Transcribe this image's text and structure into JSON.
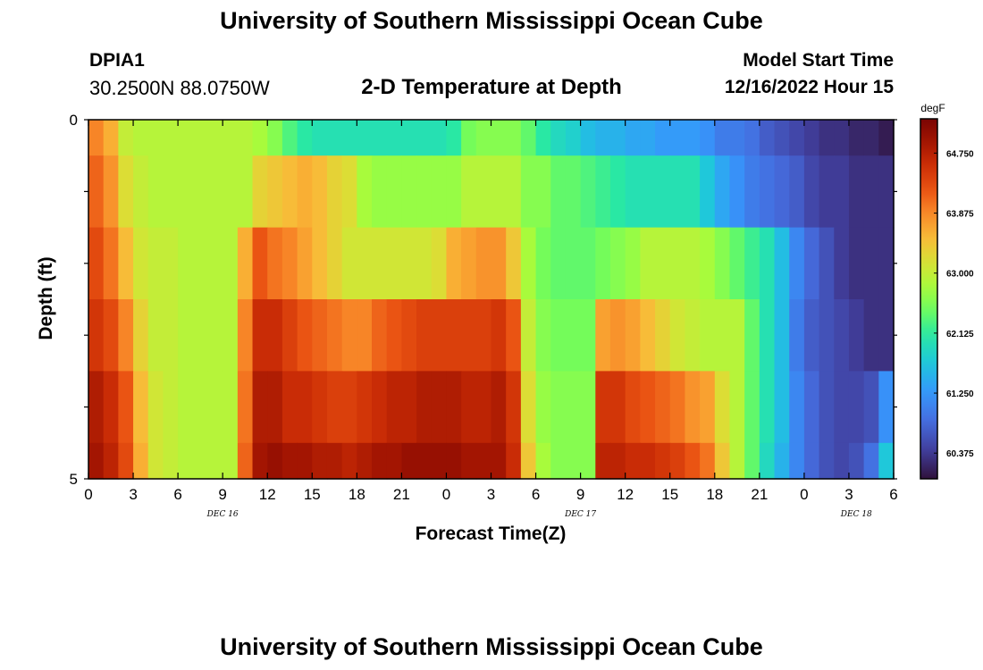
{
  "page": {
    "title": "University of Southern Mississippi Ocean Cube",
    "title_repeat": "University of Southern Mississippi Ocean Cube",
    "station_id": "DPIA1",
    "station_coords": "30.2500N  88.0750W",
    "run_label": "Model Start Time",
    "run_time": "12/16/2022 Hour 15"
  },
  "chart_data": {
    "type": "heatmap",
    "title": "2-D Temperature at Depth",
    "xlabel": "Forecast Time(Z)",
    "ylabel": "Depth (ft)",
    "x_tick_labels": [
      "0",
      "3",
      "6",
      "9",
      "12",
      "15",
      "18",
      "21",
      "0",
      "3",
      "6",
      "9",
      "12",
      "15",
      "18",
      "21",
      "0",
      "3",
      "6"
    ],
    "date_labels": [
      "DEC 16",
      "DEC 17",
      "DEC 18"
    ],
    "y_tick_labels": [
      "0",
      "5"
    ],
    "ylim": [
      0,
      5
    ],
    "x_hours": [
      0,
      54
    ],
    "colorbar": {
      "unit": "degF",
      "tick_labels": [
        "64.750",
        "63.875",
        "63.000",
        "62.125",
        "61.250",
        "60.375"
      ],
      "min": 60.0,
      "max": 65.25
    },
    "depth_bands": [
      {
        "depth_from": 0.0,
        "depth_to": 0.5,
        "temps": [
          63.9,
          63.6,
          63.0,
          62.9,
          62.9,
          62.9,
          62.9,
          62.9,
          62.9,
          62.9,
          62.9,
          62.8,
          62.6,
          62.3,
          62.1,
          62.0,
          62.0,
          62.0,
          62.0,
          62.0,
          62.0,
          62.0,
          62.0,
          62.0,
          62.1,
          62.5,
          62.6,
          62.6,
          62.6,
          62.4,
          62.1,
          61.9,
          61.8,
          61.6,
          61.5,
          61.5,
          61.4,
          61.4,
          61.3,
          61.3,
          61.3,
          61.2,
          61.0,
          61.0,
          60.9,
          60.7,
          60.6,
          60.5,
          60.4,
          60.3,
          60.3,
          60.2,
          60.2,
          60.1
        ]
      },
      {
        "depth_from": 0.5,
        "depth_to": 1.5,
        "temps": [
          64.1,
          63.8,
          63.2,
          63.0,
          62.9,
          62.9,
          62.9,
          62.9,
          62.9,
          62.9,
          62.9,
          63.3,
          63.4,
          63.5,
          63.6,
          63.5,
          63.3,
          63.2,
          62.8,
          62.7,
          62.7,
          62.7,
          62.7,
          62.7,
          62.7,
          62.9,
          62.9,
          62.9,
          62.9,
          62.6,
          62.6,
          62.4,
          62.4,
          62.3,
          62.2,
          62.1,
          62.0,
          62.0,
          62.0,
          62.0,
          62.0,
          61.7,
          61.4,
          61.2,
          61.0,
          60.9,
          60.8,
          60.7,
          60.5,
          60.4,
          60.4,
          60.3,
          60.3,
          60.3
        ]
      },
      {
        "depth_from": 1.5,
        "depth_to": 2.5,
        "temps": [
          64.3,
          64.0,
          63.5,
          63.1,
          63.0,
          63.0,
          62.9,
          62.9,
          62.9,
          62.9,
          63.6,
          64.2,
          64.0,
          63.9,
          63.7,
          63.5,
          63.3,
          63.1,
          63.1,
          63.1,
          63.1,
          63.1,
          63.1,
          63.2,
          63.6,
          63.7,
          63.8,
          63.8,
          63.4,
          62.8,
          62.5,
          62.4,
          62.4,
          62.4,
          62.5,
          62.6,
          62.7,
          62.9,
          62.9,
          62.9,
          62.9,
          62.8,
          62.6,
          62.4,
          62.2,
          62.0,
          61.6,
          61.1,
          60.8,
          60.6,
          60.4,
          60.3,
          60.3,
          60.3
        ]
      },
      {
        "depth_from": 2.5,
        "depth_to": 3.5,
        "temps": [
          64.5,
          64.3,
          63.9,
          63.3,
          63.0,
          63.0,
          62.9,
          62.9,
          62.9,
          62.9,
          63.9,
          64.6,
          64.6,
          64.4,
          64.2,
          64.1,
          64.0,
          63.9,
          63.9,
          64.1,
          64.2,
          64.3,
          64.4,
          64.4,
          64.4,
          64.4,
          64.4,
          64.5,
          64.2,
          63.0,
          62.6,
          62.5,
          62.5,
          62.5,
          63.7,
          63.8,
          63.7,
          63.5,
          63.3,
          63.1,
          63.0,
          62.9,
          62.9,
          62.9,
          62.4,
          62.0,
          61.6,
          61.0,
          60.7,
          60.6,
          60.5,
          60.4,
          60.3,
          60.3
        ]
      },
      {
        "depth_from": 3.5,
        "depth_to": 4.5,
        "temps": [
          64.8,
          64.6,
          64.2,
          63.5,
          63.1,
          63.0,
          62.9,
          62.9,
          62.9,
          62.9,
          64.0,
          64.8,
          64.8,
          64.6,
          64.6,
          64.5,
          64.4,
          64.4,
          64.5,
          64.6,
          64.7,
          64.7,
          64.8,
          64.8,
          64.8,
          64.7,
          64.7,
          64.8,
          64.5,
          63.2,
          62.7,
          62.6,
          62.6,
          62.6,
          64.5,
          64.5,
          64.3,
          64.2,
          64.1,
          64.0,
          63.8,
          63.7,
          63.2,
          62.9,
          62.4,
          62.0,
          61.6,
          61.1,
          60.8,
          60.6,
          60.5,
          60.5,
          60.6,
          61.2
        ]
      },
      {
        "depth_from": 4.5,
        "depth_to": 5.0,
        "temps": [
          64.9,
          64.7,
          64.3,
          63.6,
          63.1,
          63.0,
          62.9,
          62.9,
          62.9,
          62.9,
          64.1,
          64.9,
          65.0,
          64.9,
          64.9,
          64.8,
          64.8,
          64.7,
          64.8,
          64.9,
          64.9,
          65.0,
          65.0,
          65.0,
          65.0,
          64.9,
          64.9,
          64.9,
          64.6,
          63.4,
          62.8,
          62.6,
          62.6,
          62.6,
          64.7,
          64.7,
          64.6,
          64.6,
          64.5,
          64.4,
          64.2,
          64.0,
          63.4,
          62.9,
          62.4,
          61.9,
          61.5,
          61.1,
          60.8,
          60.6,
          60.5,
          60.6,
          60.9,
          61.7
        ]
      }
    ]
  }
}
